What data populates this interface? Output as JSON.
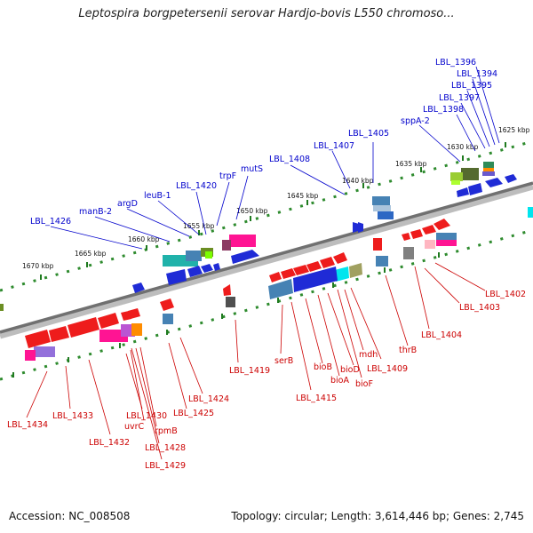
{
  "title": "Leptospira borgpetersenii serovar Hardjo-bovis L550 chromoso...",
  "accession_label": "Accession: NC_008508",
  "topology_label": "Topology: circular; Length: 3,614,446 bp; Genes: 2,745",
  "colors": {
    "forward_label": "#0000cc",
    "reverse_label": "#cc0000",
    "forward_gene": "#0000ee",
    "reverse_gene": "#ee0000",
    "backbone": "#808080",
    "tick": "#228b22"
  },
  "ticks": [
    {
      "label": "1625 kbp"
    },
    {
      "label": "1630 kbp"
    },
    {
      "label": "1635 kbp"
    },
    {
      "label": "1640 kbp"
    },
    {
      "label": "1645 kbp"
    },
    {
      "label": "1650 kbp"
    },
    {
      "label": "1655 kbp"
    },
    {
      "label": "1660 kbp"
    },
    {
      "label": "1665 kbp"
    },
    {
      "label": "1670 kbp"
    }
  ],
  "forward_genes": [
    "LBL_1396",
    "LBL_1394",
    "LBL_1395",
    "LBL_1397",
    "LBL_1398",
    "sppA-2",
    "LBL_1405",
    "LBL_1407",
    "LBL_1408",
    "mutS",
    "trpF",
    "LBL_1420",
    "leuB-1",
    "argD",
    "manB-2",
    "LBL_1426"
  ],
  "reverse_genes": [
    "LBL_1402",
    "LBL_1403",
    "LBL_1404",
    "thrB",
    "LBL_1409",
    "mdh",
    "bioF",
    "bioD",
    "bioA",
    "bioB",
    "LBL_1415",
    "serB",
    "LBL_1419",
    "LBL_1424",
    "LBL_1425",
    "LBL_1429",
    "LBL_1428",
    "rpmB",
    "uvrC",
    "LBL_1430",
    "LBL_1432",
    "LBL_1433",
    "LBL_1434"
  ]
}
